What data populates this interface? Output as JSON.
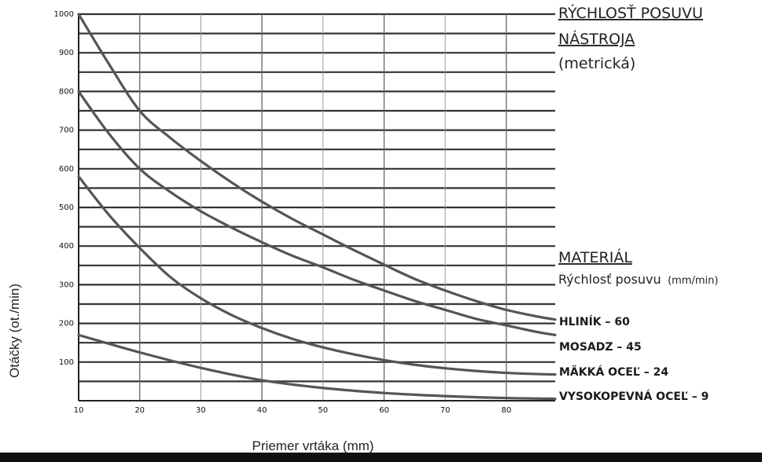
{
  "chart_data": {
    "type": "line",
    "ylabel": "Otáčky (ot./min)",
    "xlabel": "Priemer vrtáka (mm)",
    "xlim": [
      10,
      88
    ],
    "ylim": [
      0,
      1000
    ],
    "x_ticks": [
      "10",
      "20",
      "30",
      "40",
      "50",
      "60",
      "70",
      "80"
    ],
    "y_ticks": [
      "1000",
      "900",
      "800",
      "700",
      "600",
      "500",
      "400",
      "300",
      "200",
      "100"
    ],
    "side_title_lines": [
      "RÝCHLOSŤ POSUVU",
      "NÁSTROJA"
    ],
    "side_title_note": "(metrická)",
    "material_heading": "MATERIÁL",
    "feed_label": "Rýchlosť posuvu",
    "feed_unit": "(mm/min)",
    "series": [
      {
        "name": "HLINÍK – 60",
        "x": [
          10,
          15,
          20,
          25,
          30,
          35,
          40,
          45,
          50,
          55,
          60,
          65,
          70,
          75,
          80,
          85,
          88
        ],
        "y": [
          1000,
          870,
          750,
          680,
          620,
          565,
          515,
          470,
          430,
          390,
          352,
          315,
          285,
          258,
          235,
          218,
          210
        ]
      },
      {
        "name": "MOSADZ – 45",
        "x": [
          10,
          15,
          20,
          25,
          30,
          35,
          40,
          45,
          50,
          55,
          60,
          65,
          70,
          75,
          80,
          85,
          88
        ],
        "y": [
          800,
          690,
          600,
          540,
          490,
          448,
          410,
          375,
          345,
          313,
          285,
          258,
          235,
          212,
          195,
          178,
          170
        ]
      },
      {
        "name": "MÄKKÁ OCEĽ – 24",
        "x": [
          10,
          15,
          20,
          25,
          30,
          35,
          40,
          45,
          50,
          55,
          60,
          65,
          70,
          75,
          80,
          85,
          88
        ],
        "y": [
          580,
          480,
          395,
          320,
          265,
          222,
          188,
          160,
          138,
          120,
          105,
          93,
          84,
          77,
          72,
          69,
          68
        ]
      },
      {
        "name": "VYSOKOPEVNÁ OCEĽ – 9",
        "x": [
          10,
          20,
          30,
          40,
          50,
          60,
          70,
          80,
          88
        ],
        "y": [
          170,
          125,
          85,
          53,
          33,
          20,
          12,
          7,
          5
        ]
      }
    ],
    "legend": "right",
    "grid": true
  }
}
